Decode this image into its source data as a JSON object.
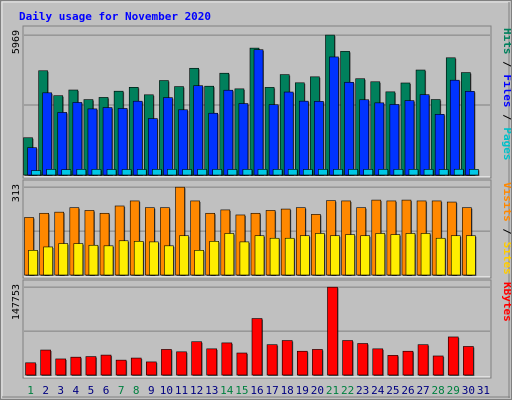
{
  "chart_data": {
    "type": "bar",
    "title": "Daily usage for November 2020",
    "days": [
      "1",
      "2",
      "3",
      "4",
      "5",
      "6",
      "7",
      "8",
      "9",
      "10",
      "11",
      "12",
      "13",
      "14",
      "15",
      "16",
      "17",
      "18",
      "19",
      "20",
      "21",
      "22",
      "23",
      "24",
      "25",
      "26",
      "27",
      "28",
      "29",
      "30",
      "31"
    ],
    "weekend_days": [
      "1",
      "7",
      "8",
      "14",
      "15",
      "21",
      "22",
      "28",
      "29"
    ],
    "panels": [
      {
        "name": "top",
        "scale_label": "5969",
        "ymax": 5969,
        "right_labels": [
          {
            "text": "Hits",
            "color": "#00805c"
          },
          {
            "text": "Files",
            "color": "#0000ff"
          },
          {
            "text": "Pages",
            "color": "#00c0c8"
          }
        ],
        "series": [
          {
            "name": "Hits",
            "color": "#00805c",
            "values": [
              1589,
              4447,
              3383,
              3625,
              3217,
              3309,
              3575,
              3741,
              3421,
              4030,
              3772,
              4553,
              3788,
              4342,
              3675,
              5413,
              3737,
              4283,
              3933,
              4188,
              5969,
              5274,
              4107,
              3977,
              3547,
              3925,
              4478,
              3219,
              5000,
              4370
            ]
          },
          {
            "name": "Files",
            "color": "#0033ff",
            "values": [
              1166,
              3506,
              2669,
              3094,
              2820,
              2876,
              2838,
              3148,
              2408,
              3301,
              2782,
              3809,
              2635,
              3617,
              3048,
              5345,
              3001,
              3539,
              3150,
              3141,
              5036,
              3955,
              3210,
              3078,
              3009,
              3174,
              3427,
              2589,
              4044,
              3570
            ]
          },
          {
            "name": "Pages",
            "color": "#00c8e6",
            "values": [
              190,
              240,
              230,
              240,
              240,
              235,
              235,
              235,
              240,
              240,
              235,
              240,
              240,
              235,
              240,
              240,
              240,
              240,
              235,
              240,
              240,
              240,
              240,
              240,
              240,
              240,
              240,
              235,
              245,
              240
            ]
          }
        ]
      },
      {
        "name": "middle",
        "scale_label": "313",
        "ymax": 313,
        "right_labels": [
          {
            "text": "Visits",
            "color": "#ff8800"
          },
          {
            "text": "Sites",
            "color": "#ffcc00"
          }
        ],
        "series": [
          {
            "name": "Visits",
            "color": "#ff8800",
            "values": [
              205,
              220,
              224,
              240,
              230,
              220,
              246,
              264,
              240,
              240,
              313,
              264,
              220,
              232,
              214,
              220,
              230,
              235,
              240,
              216,
              265,
              264,
              240,
              267,
              264,
              267,
              264,
              264,
              260,
              240
            ]
          },
          {
            "name": "Sites",
            "color": "#ffee00",
            "values": [
              88,
              100,
              112,
              112,
              106,
              104,
              122,
              120,
              118,
              104,
              140,
              88,
              120,
              148,
              118,
              140,
              131,
              131,
              140,
              148,
              140,
              144,
              140,
              148,
              144,
              148,
              148,
              131,
              140,
              140
            ]
          }
        ]
      },
      {
        "name": "bottom",
        "scale_label": "147753",
        "ymax": 147753,
        "right_labels": [
          {
            "text": "KBytes",
            "color": "#ff0000"
          }
        ],
        "series": [
          {
            "name": "KBytes",
            "color": "#ff0000",
            "values": [
              20500,
              42000,
              27000,
              30000,
              31000,
              33500,
              25000,
              28500,
              22000,
              43000,
              39000,
              56000,
              44000,
              54000,
              37000,
              95000,
              51000,
              58000,
              40000,
              43000,
              147753,
              58000,
              53000,
              44000,
              33000,
              40000,
              51000,
              32000,
              64000,
              48000
            ]
          }
        ]
      }
    ]
  }
}
